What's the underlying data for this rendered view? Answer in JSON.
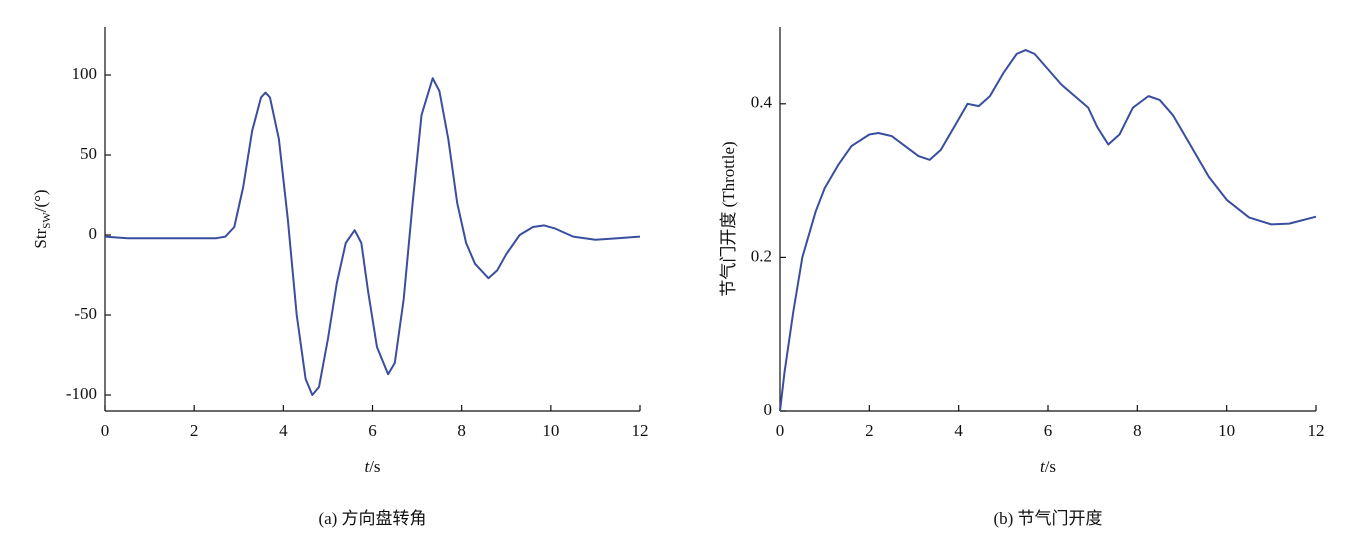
{
  "chart_data": [
    {
      "type": "line",
      "ylabel": "Str",
      "ylabel_sub": "SW",
      "ylabel_unit": "/(°)",
      "xlabel_var": "t",
      "xlabel_unit": "/s",
      "caption": "(a)  方向盘转角",
      "xlim": [
        0,
        12
      ],
      "xticks": [
        0,
        2,
        4,
        6,
        8,
        10,
        12
      ],
      "ylim": [
        -110,
        130
      ],
      "yticks": [
        -100,
        -50,
        0,
        50,
        100
      ],
      "series": [
        {
          "color": "#3a4ea0",
          "x": [
            0,
            0.5,
            1,
            1.5,
            2,
            2.5,
            2.7,
            2.9,
            3.1,
            3.3,
            3.5,
            3.6,
            3.7,
            3.9,
            4.1,
            4.3,
            4.5,
            4.65,
            4.8,
            5.0,
            5.2,
            5.4,
            5.6,
            5.75,
            5.9,
            6.1,
            6.35,
            6.5,
            6.7,
            6.9,
            7.1,
            7.35,
            7.5,
            7.7,
            7.9,
            8.1,
            8.3,
            8.6,
            8.8,
            9.0,
            9.3,
            9.6,
            9.85,
            10.1,
            10.5,
            11,
            11.5,
            12
          ],
          "values": [
            -1,
            -2,
            -2,
            -2,
            -2,
            -2,
            -1,
            5,
            30,
            65,
            86,
            89,
            86,
            60,
            10,
            -50,
            -90,
            -100,
            -95,
            -65,
            -30,
            -5,
            3,
            -5,
            -35,
            -70,
            -87,
            -80,
            -40,
            20,
            75,
            98,
            90,
            60,
            20,
            -5,
            -18,
            -27,
            -22,
            -12,
            0,
            5,
            6,
            4,
            -1,
            -3,
            -2,
            -1
          ]
        }
      ]
    },
    {
      "type": "line",
      "ylabel": "节气门开度 (Throttle)",
      "xlabel_var": "t",
      "xlabel_unit": "/s",
      "caption": "(b)  节气门开度",
      "xlim": [
        0,
        12
      ],
      "xticks": [
        0,
        2,
        4,
        6,
        8,
        10,
        12
      ],
      "ylim": [
        0,
        0.5
      ],
      "yticks": [
        0,
        0.2,
        0.4
      ],
      "series": [
        {
          "color": "#3a4ea0",
          "x": [
            0,
            0.1,
            0.3,
            0.5,
            0.8,
            1,
            1.3,
            1.6,
            2,
            2.2,
            2.5,
            2.8,
            3.1,
            3.35,
            3.6,
            3.9,
            4.2,
            4.45,
            4.7,
            5,
            5.3,
            5.5,
            5.7,
            6,
            6.3,
            6.6,
            6.9,
            7.1,
            7.35,
            7.6,
            7.9,
            8.25,
            8.5,
            8.8,
            9.2,
            9.6,
            10,
            10.5,
            11,
            11.4,
            12
          ],
          "values": [
            0,
            0.05,
            0.13,
            0.2,
            0.26,
            0.29,
            0.32,
            0.345,
            0.36,
            0.362,
            0.358,
            0.345,
            0.332,
            0.327,
            0.34,
            0.37,
            0.4,
            0.397,
            0.41,
            0.44,
            0.465,
            0.47,
            0.465,
            0.445,
            0.425,
            0.41,
            0.395,
            0.37,
            0.347,
            0.36,
            0.395,
            0.41,
            0.405,
            0.385,
            0.345,
            0.305,
            0.275,
            0.252,
            0.243,
            0.244,
            0.253
          ]
        }
      ]
    }
  ]
}
